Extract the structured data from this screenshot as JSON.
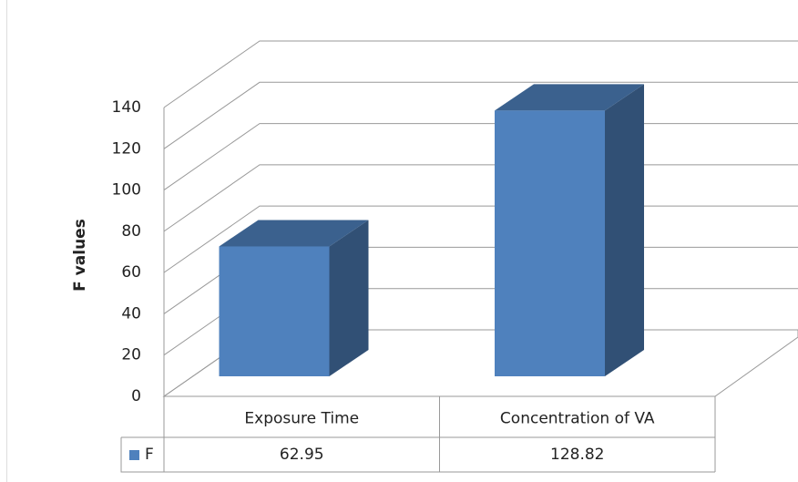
{
  "chart_data": {
    "type": "bar3d",
    "y_label": "F values",
    "categories": [
      "Exposure Time",
      "Concentration of VA"
    ],
    "series": [
      {
        "name": "F",
        "color": "#4f81bd",
        "values": [
          62.95,
          128.82
        ]
      }
    ],
    "ylim": [
      0,
      140
    ],
    "yticks": [
      0,
      20,
      40,
      60,
      80,
      100,
      120,
      140
    ],
    "grid": true,
    "legend": "data-table"
  }
}
